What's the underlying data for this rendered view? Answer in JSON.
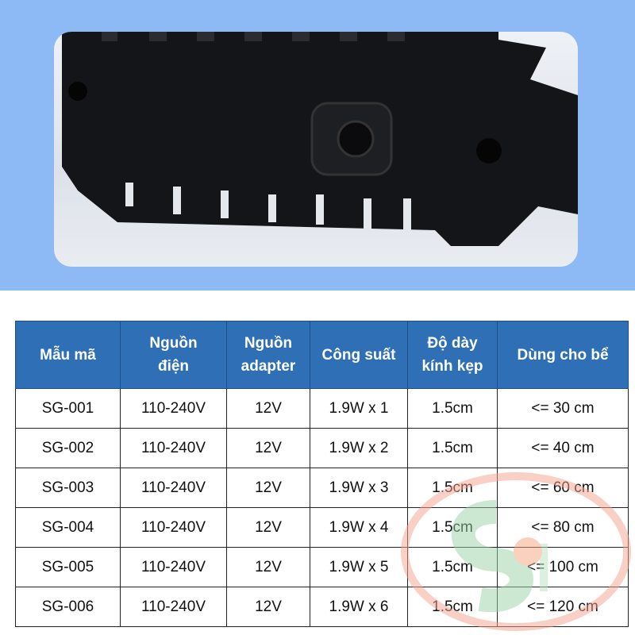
{
  "table": {
    "headers": [
      [
        "Mẫu mã"
      ],
      [
        "Nguồn",
        "điện"
      ],
      [
        "Nguồn",
        "adapter"
      ],
      [
        "Công suất"
      ],
      [
        "Độ dày",
        "kính kẹp"
      ],
      [
        "Dùng cho bể"
      ]
    ],
    "rows": [
      [
        "SG-001",
        "110-240V",
        "12V",
        "1.9W x 1",
        "1.5cm",
        "<= 30 cm"
      ],
      [
        "SG-002",
        "110-240V",
        "12V",
        "1.9W x 2",
        "1.5cm",
        "<= 40 cm"
      ],
      [
        "SG-003",
        "110-240V",
        "12V",
        "1.9W x 3",
        "1.5cm",
        "<= 60 cm"
      ],
      [
        "SG-004",
        "110-240V",
        "12V",
        "1.9W x 4",
        "1.5cm",
        "<= 80 cm"
      ],
      [
        "SG-005",
        "110-240V",
        "12V",
        "1.9W x 5",
        "1.5cm",
        "<= 100 cm"
      ],
      [
        "SG-006",
        "110-240V",
        "12V",
        "1.9W x 6",
        "1.5cm",
        "<= 120 cm"
      ]
    ]
  },
  "colors": {
    "background_top": "#8db9f4",
    "header": "#2f6fb5"
  },
  "watermark": {
    "text": "SH"
  }
}
